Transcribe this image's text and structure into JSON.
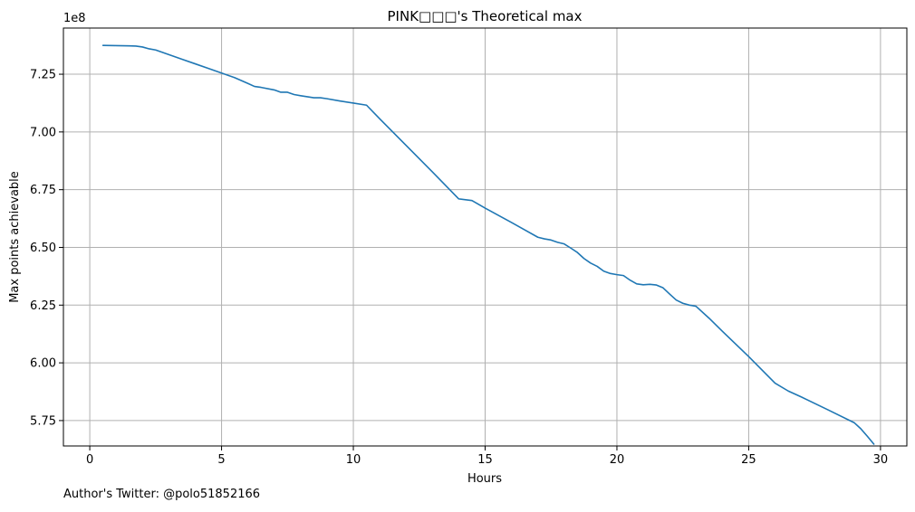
{
  "chart_data": {
    "type": "line",
    "title": "PINK□□□'s Theoretical max",
    "xlabel": "Hours",
    "ylabel": "Max points achievable",
    "y_offset_label": "1e8",
    "xlim": [
      -1,
      31
    ],
    "ylim": [
      5.64,
      7.45
    ],
    "xticks": [
      0,
      5,
      10,
      15,
      20,
      25,
      30
    ],
    "yticks": [
      5.75,
      6.0,
      6.25,
      6.5,
      6.75,
      7.0,
      7.25
    ],
    "ytick_labels": [
      "5.75",
      "6.00",
      "6.25",
      "6.50",
      "6.75",
      "7.00",
      "7.25"
    ],
    "grid": true,
    "series": [
      {
        "color": "#1f77b4",
        "x": [
          0.5,
          1.0,
          1.5,
          1.75,
          2.0,
          2.25,
          2.5,
          3.0,
          3.5,
          4.0,
          4.5,
          5.0,
          5.5,
          6.0,
          6.25,
          6.5,
          7.0,
          7.25,
          7.5,
          7.75,
          8.0,
          8.5,
          8.75,
          9.0,
          9.5,
          10.0,
          10.5,
          11.0,
          12.0,
          13.0,
          14.0,
          14.5,
          15.0,
          16.0,
          17.0,
          17.25,
          17.5,
          17.75,
          18.0,
          18.25,
          18.5,
          18.75,
          19.0,
          19.25,
          19.5,
          19.75,
          20.0,
          20.25,
          20.5,
          20.75,
          21.0,
          21.25,
          21.5,
          21.75,
          22.0,
          22.25,
          22.5,
          22.75,
          23.0,
          23.5,
          24.0,
          25.0,
          26.0,
          26.5,
          27.0,
          28.0,
          29.0,
          29.25,
          29.5,
          29.75
        ],
        "y": [
          7.375,
          7.374,
          7.373,
          7.372,
          7.368,
          7.36,
          7.355,
          7.335,
          7.315,
          7.295,
          7.275,
          7.255,
          7.235,
          7.21,
          7.197,
          7.193,
          7.182,
          7.172,
          7.172,
          7.162,
          7.157,
          7.148,
          7.148,
          7.144,
          7.134,
          7.125,
          7.116,
          7.057,
          6.942,
          6.827,
          6.71,
          6.703,
          6.67,
          6.608,
          6.544,
          6.537,
          6.532,
          6.522,
          6.515,
          6.497,
          6.478,
          6.452,
          6.432,
          6.418,
          6.397,
          6.387,
          6.382,
          6.378,
          6.358,
          6.342,
          6.338,
          6.34,
          6.337,
          6.325,
          6.298,
          6.272,
          6.258,
          6.25,
          6.245,
          6.193,
          6.137,
          6.027,
          5.912,
          5.878,
          5.852,
          5.797,
          5.741,
          5.715,
          5.682,
          5.648
        ]
      }
    ]
  },
  "footer": {
    "author": "Author's Twitter: @polo51852166"
  }
}
